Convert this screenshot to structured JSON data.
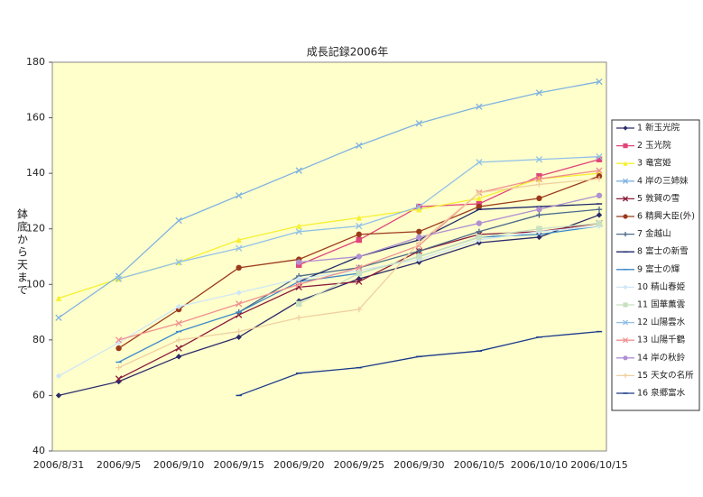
{
  "chart_data": {
    "type": "line",
    "title": "成長記録2006年",
    "y_label": "鉢底から天まで",
    "categories": [
      "2006/8/31",
      "2006/9/5",
      "2006/9/10",
      "2006/9/15",
      "2006/9/20",
      "2006/9/25",
      "2006/9/30",
      "2006/10/5",
      "2006/10/10",
      "2006/10/15"
    ],
    "ylim": [
      40,
      180
    ],
    "yticks": [
      40,
      60,
      80,
      100,
      120,
      140,
      160,
      180
    ],
    "grid": false,
    "legend": "right",
    "plot_background": "#ffffcc",
    "series": [
      {
        "name": "1 新玉光院",
        "color": "#2b2b6b",
        "marker": "diamond",
        "values": [
          60,
          65,
          74,
          81,
          94,
          102,
          108,
          115,
          117,
          125
        ]
      },
      {
        "name": "2 玉光院",
        "color": "#e0457b",
        "marker": "square",
        "values": [
          null,
          null,
          null,
          null,
          107,
          116,
          128,
          129,
          139,
          145
        ]
      },
      {
        "name": "3 竜宮姫",
        "color": "#f5f030",
        "marker": "triangle",
        "values": [
          95,
          102,
          108,
          116,
          121,
          124,
          127,
          131,
          138,
          140
        ]
      },
      {
        "name": "4 岸の三姉妹",
        "color": "#7fb2e0",
        "marker": "x",
        "values": [
          88,
          103,
          123,
          132,
          141,
          150,
          158,
          164,
          169,
          173
        ]
      },
      {
        "name": "5 敦賀の雪",
        "color": "#8b1a3a",
        "marker": "x",
        "values": [
          null,
          66,
          77,
          89,
          99,
          101,
          112,
          118,
          119,
          122
        ]
      },
      {
        "name": "6 精興大臣(外)",
        "color": "#9b3a1a",
        "marker": "circle",
        "values": [
          null,
          77,
          91,
          106,
          109,
          118,
          119,
          128,
          131,
          139
        ]
      },
      {
        "name": "7 金越山",
        "color": "#4a6a8a",
        "marker": "plus",
        "values": [
          null,
          null,
          null,
          90,
          103,
          106,
          112,
          119,
          125,
          127
        ]
      },
      {
        "name": "8 富士の新雪",
        "color": "#1f2a6b",
        "marker": "dash",
        "values": [
          null,
          null,
          null,
          null,
          101,
          110,
          116,
          127,
          128,
          129
        ]
      },
      {
        "name": "9 富士の輝",
        "color": "#3c8ac8",
        "marker": "dash",
        "values": [
          null,
          72,
          83,
          90,
          101,
          104,
          110,
          117,
          118,
          121
        ]
      },
      {
        "name": "10 精山春姫",
        "color": "#cfe6f6",
        "marker": "diamond",
        "values": [
          67,
          79,
          92,
          97,
          102,
          105,
          109,
          116,
          119,
          121
        ]
      },
      {
        "name": "11 国華薫雲",
        "color": "#c8e0c0",
        "marker": "square",
        "values": [
          null,
          null,
          null,
          null,
          93,
          104,
          110,
          117,
          120,
          122
        ]
      },
      {
        "name": "12 山陽雲水",
        "color": "#90c0e8",
        "marker": "x",
        "values": [
          null,
          102,
          108,
          113,
          119,
          121,
          128,
          144,
          145,
          146
        ]
      },
      {
        "name": "13 山陽千鶴",
        "color": "#f09090",
        "marker": "x",
        "values": [
          null,
          80,
          86,
          93,
          100,
          106,
          114,
          133,
          138,
          141
        ]
      },
      {
        "name": "14 岸の秋鈴",
        "color": "#b090d0",
        "marker": "circle",
        "values": [
          null,
          null,
          null,
          null,
          108,
          110,
          117,
          122,
          127,
          132
        ]
      },
      {
        "name": "15 天女の名所",
        "color": "#f0d0a0",
        "marker": "plus",
        "values": [
          null,
          70,
          80,
          83,
          88,
          91,
          115,
          133,
          136,
          138
        ]
      },
      {
        "name": "16 泉郷富水",
        "color": "#1a3a8a",
        "marker": "dash",
        "values": [
          null,
          null,
          null,
          60,
          68,
          70,
          74,
          76,
          81,
          83
        ]
      }
    ]
  }
}
